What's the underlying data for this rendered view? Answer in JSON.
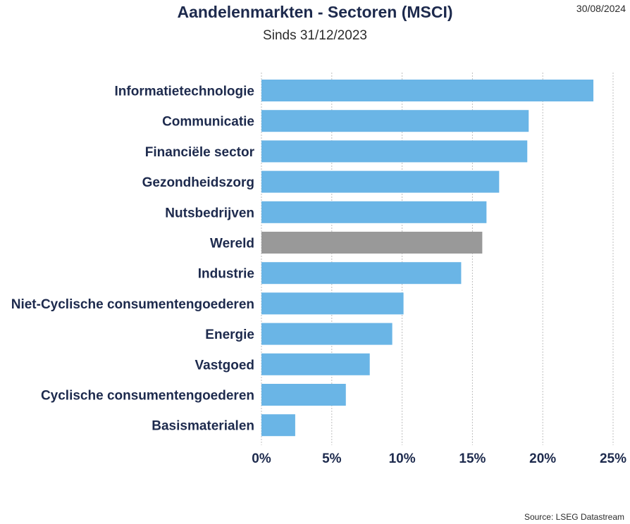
{
  "header": {
    "title": "Aandelenmarkten - Sectoren (MSCI)",
    "subtitle": "Sinds 31/12/2023",
    "date": "30/08/2024"
  },
  "footer": {
    "source": "Source: LSEG Datastream"
  },
  "colors": {
    "bar": "#6ab5e6",
    "highlight": "#999999",
    "grid": "#bfbfbf"
  },
  "chart_data": {
    "type": "bar",
    "orientation": "horizontal",
    "title": "Aandelenmarkten - Sectoren (MSCI)",
    "subtitle": "Sinds 31/12/2023",
    "categories": [
      "Informatietechnologie",
      "Communicatie",
      "Financiële sector",
      "Gezondheidszorg",
      "Nutsbedrijven",
      "Wereld",
      "Industrie",
      "Niet-Cyclische consumentengoederen",
      "Energie",
      "Vastgoed",
      "Cyclische consumentengoederen",
      "Basismaterialen"
    ],
    "values": [
      23.6,
      19.0,
      18.9,
      16.9,
      16.0,
      15.7,
      14.2,
      10.1,
      9.3,
      7.7,
      6.0,
      2.4
    ],
    "highlight_category": "Wereld",
    "xlim": [
      0,
      25
    ],
    "xticks": [
      0,
      5,
      10,
      15,
      20,
      25
    ],
    "xtick_labels": [
      "0%",
      "5%",
      "10%",
      "15%",
      "20%",
      "25%"
    ],
    "grid": "vertical dotted",
    "legend": "none"
  }
}
